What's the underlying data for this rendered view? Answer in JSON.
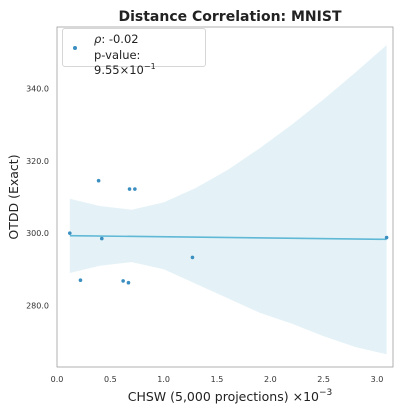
{
  "chart_data": {
    "type": "scatter",
    "title": "Distance Correlation: MNIST",
    "xlabel": "CHSW (5,000 projections)",
    "x_multiplier": "×10",
    "x_multiplier_exp": "−3",
    "ylabel": "OTDD (Exact)",
    "xlim": [
      0.0,
      3.15
    ],
    "ylim": [
      263,
      357
    ],
    "xticks": [
      "0.0",
      "0.5",
      "1.0",
      "1.5",
      "2.0",
      "2.5",
      "3.0"
    ],
    "yticks": [
      "280.0",
      "300.0",
      "320.0",
      "340.0"
    ],
    "grid": false,
    "legend_position": "upper-left",
    "points": [
      {
        "x": 0.12,
        "y": 300.0
      },
      {
        "x": 0.22,
        "y": 287.0
      },
      {
        "x": 0.39,
        "y": 314.5
      },
      {
        "x": 0.42,
        "y": 298.5
      },
      {
        "x": 0.62,
        "y": 286.8
      },
      {
        "x": 0.67,
        "y": 286.3
      },
      {
        "x": 0.68,
        "y": 312.2
      },
      {
        "x": 0.73,
        "y": 312.2
      },
      {
        "x": 1.27,
        "y": 293.3
      },
      {
        "x": 3.09,
        "y": 298.8
      }
    ],
    "regression": {
      "x": [
        0.12,
        3.09
      ],
      "y": [
        299.3,
        298.3
      ]
    },
    "confidence_band": {
      "x": [
        0.12,
        0.4,
        0.7,
        1.0,
        1.3,
        1.6,
        1.9,
        2.2,
        2.5,
        2.8,
        3.09
      ],
      "upper": [
        309.5,
        307.5,
        306.5,
        308.5,
        312.5,
        317.5,
        323.5,
        330.0,
        337.0,
        344.5,
        352.0
      ],
      "lower": [
        289.0,
        291.0,
        292.0,
        290.0,
        286.0,
        282.0,
        278.0,
        275.0,
        271.5,
        268.5,
        266.5
      ]
    },
    "legend": {
      "rho_label": "ρ",
      "rho_value": ": -0.02",
      "pvalue_label": "p-value: 9.55×10",
      "pvalue_exp": "−1"
    },
    "colors": {
      "points": "#3a8fc0",
      "line": "#5fb8d6",
      "band": "#d8edf4"
    }
  }
}
